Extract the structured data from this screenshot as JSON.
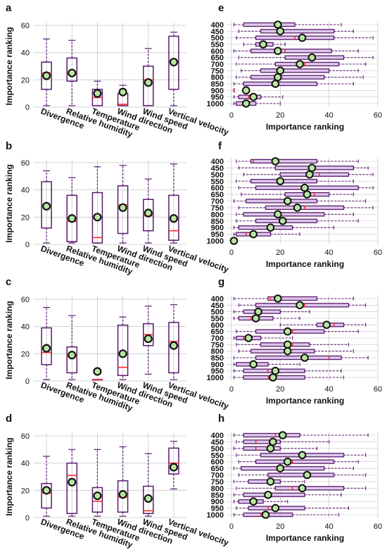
{
  "figure": {
    "colors": {
      "box": "#5b1a6e",
      "whisker": "#5b1a6e",
      "median": "#ff2a2a",
      "mean_fill": "#b8e6a0",
      "mean_edge": "#111111",
      "hbox_fill": "#dcc8ea",
      "grid": "#c8c8c8"
    }
  },
  "chart_data": [
    {
      "panel": "a",
      "type": "box",
      "orientation": "vertical",
      "ylabel": "Importance ranking",
      "ylim": [
        0,
        60
      ],
      "yticks": [
        0,
        20,
        40,
        60
      ],
      "categories": [
        "Divergence",
        "Relative humidity",
        "Temperature",
        "Wind direction",
        "Wind speed",
        "Vertical velocity"
      ],
      "boxes": [
        {
          "whislo": 1,
          "q1": 13,
          "med": 25,
          "q3": 33,
          "whishi": 50,
          "mean": 23
        },
        {
          "whislo": 1,
          "q1": 19,
          "med": 24,
          "q3": 36,
          "whishi": 49,
          "mean": 25
        },
        {
          "whislo": 1,
          "q1": 1,
          "med": 7,
          "q3": 13,
          "whishi": 19,
          "mean": 10
        },
        {
          "whislo": 1,
          "q1": 1,
          "med": 2,
          "q3": 10,
          "whishi": 16,
          "mean": 11
        },
        {
          "whislo": 1,
          "q1": 1,
          "med": 20,
          "q3": 30,
          "whishi": 43,
          "mean": 18
        },
        {
          "whislo": 1,
          "q1": 13,
          "med": 34,
          "q3": 52,
          "whishi": 55,
          "mean": 33
        }
      ]
    },
    {
      "panel": "e",
      "type": "box",
      "orientation": "horizontal",
      "xlabel": "Importance ranking",
      "xlim": [
        -2,
        60
      ],
      "xticks": [
        0,
        20,
        40,
        60
      ],
      "categories": [
        "400",
        "450",
        "500",
        "550",
        "600",
        "650",
        "700",
        "750",
        "800",
        "850",
        "900",
        "950",
        "1000"
      ],
      "boxes": [
        {
          "whislo": 1,
          "q1": 5,
          "med": 20,
          "q3": 26,
          "whishi": 45,
          "mean": 19
        },
        {
          "whislo": 3,
          "q1": 12,
          "med": 20,
          "q3": 42,
          "whishi": 50,
          "mean": 20
        },
        {
          "whislo": 2,
          "q1": 10,
          "med": 26,
          "q3": 42,
          "whishi": 58,
          "mean": 29
        },
        {
          "whislo": 5,
          "q1": 10,
          "med": 13,
          "q3": 17,
          "whishi": 22,
          "mean": 13
        },
        {
          "whislo": 1,
          "q1": 8,
          "med": 22,
          "q3": 41,
          "whishi": 52,
          "mean": 19
        },
        {
          "whislo": 3,
          "q1": 22,
          "med": 34,
          "q3": 46,
          "whishi": 58,
          "mean": 33
        },
        {
          "whislo": 2,
          "q1": 18,
          "med": 30,
          "q3": 44,
          "whishi": 55,
          "mean": 28
        },
        {
          "whislo": 4,
          "q1": 12,
          "med": 20,
          "q3": 40,
          "whishi": 52,
          "mean": 20
        },
        {
          "whislo": 2,
          "q1": 8,
          "med": 19,
          "q3": 38,
          "whishi": 54,
          "mean": 19
        },
        {
          "whislo": 1,
          "q1": 5,
          "med": 18,
          "q3": 35,
          "whishi": 50,
          "mean": 18
        },
        {
          "whislo": 1,
          "q1": 1,
          "med": 1,
          "q3": 1,
          "whishi": 1,
          "mean": 6
        },
        {
          "whislo": 1,
          "q1": 3,
          "med": 7,
          "q3": 12,
          "whishi": 21,
          "mean": 9
        },
        {
          "whislo": 1,
          "q1": 2,
          "med": 5,
          "q3": 10,
          "whishi": 20,
          "mean": 6
        }
      ]
    },
    {
      "panel": "b",
      "type": "box",
      "orientation": "vertical",
      "ylabel": "Importance ranking",
      "ylim": [
        0,
        60
      ],
      "yticks": [
        0,
        20,
        40,
        60
      ],
      "categories": [
        "Divergence",
        "Relative humidity",
        "Temperature",
        "Wind direction",
        "Wind speed",
        "Vertical velocity"
      ],
      "boxes": [
        {
          "whislo": 1,
          "q1": 12,
          "med": 29,
          "q3": 46,
          "whishi": 54,
          "mean": 28
        },
        {
          "whislo": 1,
          "q1": 2,
          "med": 17,
          "q3": 36,
          "whishi": 49,
          "mean": 19
        },
        {
          "whislo": 1,
          "q1": 1,
          "med": 5,
          "q3": 38,
          "whishi": 57,
          "mean": 20
        },
        {
          "whislo": 1,
          "q1": 8,
          "med": 29,
          "q3": 43,
          "whishi": 58,
          "mean": 27
        },
        {
          "whislo": 1,
          "q1": 10,
          "med": 21,
          "q3": 33,
          "whishi": 48,
          "mean": 23
        },
        {
          "whislo": 1,
          "q1": 3,
          "med": 10,
          "q3": 36,
          "whishi": 59,
          "mean": 19
        }
      ]
    },
    {
      "panel": "f",
      "type": "box",
      "orientation": "horizontal",
      "xlabel": "Importance ranking",
      "xlim": [
        -2,
        60
      ],
      "xticks": [
        0,
        20,
        40,
        60
      ],
      "categories": [
        "400",
        "450",
        "500",
        "550",
        "600",
        "650",
        "700",
        "750",
        "800",
        "850",
        "900",
        "950",
        "1000"
      ],
      "boxes": [
        {
          "whislo": 2,
          "q1": 8,
          "med": 9,
          "q3": 35,
          "whishi": 52,
          "mean": 18
        },
        {
          "whislo": 3,
          "q1": 18,
          "med": 34,
          "q3": 50,
          "whishi": 56,
          "mean": 33
        },
        {
          "whislo": 5,
          "q1": 20,
          "med": 36,
          "q3": 48,
          "whishi": 58,
          "mean": 32
        },
        {
          "whislo": 2,
          "q1": 8,
          "med": 20,
          "q3": 35,
          "whishi": 50,
          "mean": 20
        },
        {
          "whislo": 3,
          "q1": 10,
          "med": 30,
          "q3": 52,
          "whishi": 58,
          "mean": 30
        },
        {
          "whislo": 4,
          "q1": 22,
          "med": 34,
          "q3": 40,
          "whishi": 50,
          "mean": 31
        },
        {
          "whislo": 1,
          "q1": 6,
          "med": 22,
          "q3": 35,
          "whishi": 55,
          "mean": 23
        },
        {
          "whislo": 3,
          "q1": 14,
          "med": 30,
          "q3": 46,
          "whishi": 58,
          "mean": 27
        },
        {
          "whislo": 2,
          "q1": 5,
          "med": 20,
          "q3": 38,
          "whishi": 50,
          "mean": 19
        },
        {
          "whislo": 2,
          "q1": 10,
          "med": 20,
          "q3": 35,
          "whishi": 52,
          "mean": 21
        },
        {
          "whislo": 1,
          "q1": 3,
          "med": 15,
          "q3": 25,
          "whishi": 42,
          "mean": 16
        },
        {
          "whislo": 1,
          "q1": 2,
          "med": 6,
          "q3": 16,
          "whishi": 28,
          "mean": 9
        },
        {
          "whislo": 1,
          "q1": 1,
          "med": 1,
          "q3": 1,
          "whishi": 1,
          "mean": 1
        }
      ]
    },
    {
      "panel": "c",
      "type": "box",
      "orientation": "vertical",
      "ylabel": "Importance ranking",
      "ylim": [
        0,
        60
      ],
      "yticks": [
        0,
        20,
        40,
        60
      ],
      "categories": [
        "Divergence",
        "Relative humidity",
        "Temperature",
        "Wind direction",
        "Wind speed",
        "Vertical velocity"
      ],
      "boxes": [
        {
          "whislo": 1,
          "q1": 12,
          "med": 21,
          "q3": 39,
          "whishi": 54,
          "mean": 24
        },
        {
          "whislo": 1,
          "q1": 6,
          "med": 18,
          "q3": 25,
          "whishi": 48,
          "mean": 19
        },
        {
          "whislo": 1,
          "q1": 1,
          "med": 1,
          "q3": 1,
          "whishi": 1,
          "mean": 7
        },
        {
          "whislo": 1,
          "q1": 4,
          "med": 10,
          "q3": 41,
          "whishi": 47,
          "mean": 20
        },
        {
          "whislo": 5,
          "q1": 26,
          "med": 34,
          "q3": 42,
          "whishi": 55,
          "mean": 31
        },
        {
          "whislo": 1,
          "q1": 6,
          "med": 29,
          "q3": 43,
          "whishi": 56,
          "mean": 26
        }
      ]
    },
    {
      "panel": "g",
      "type": "box",
      "orientation": "horizontal",
      "xlabel": "Importance ranking",
      "xlim": [
        -2,
        60
      ],
      "xticks": [
        0,
        20,
        40,
        60
      ],
      "categories": [
        "400",
        "450",
        "500",
        "550",
        "600",
        "650",
        "700",
        "750",
        "800",
        "850",
        "900",
        "950",
        "1000"
      ],
      "boxes": [
        {
          "whislo": 1,
          "q1": 15,
          "med": 16,
          "q3": 35,
          "whishi": 50,
          "mean": 19
        },
        {
          "whislo": 3,
          "q1": 10,
          "med": 30,
          "q3": 48,
          "whishi": 55,
          "mean": 28
        },
        {
          "whislo": 1,
          "q1": 5,
          "med": 10,
          "q3": 20,
          "whishi": 32,
          "mean": 11
        },
        {
          "whislo": 1,
          "q1": 3,
          "med": 8,
          "q3": 17,
          "whishi": 28,
          "mean": 10
        },
        {
          "whislo": 20,
          "q1": 35,
          "med": 42,
          "q3": 46,
          "whishi": 55,
          "mean": 39
        },
        {
          "whislo": 2,
          "q1": 10,
          "med": 25,
          "q3": 38,
          "whishi": 52,
          "mean": 23
        },
        {
          "whislo": 1,
          "q1": 2,
          "med": 5,
          "q3": 12,
          "whishi": 25,
          "mean": 7
        },
        {
          "whislo": 2,
          "q1": 12,
          "med": 25,
          "q3": 32,
          "whishi": 48,
          "mean": 23
        },
        {
          "whislo": 3,
          "q1": 8,
          "med": 22,
          "q3": 34,
          "whishi": 50,
          "mean": 23
        },
        {
          "whislo": 1,
          "q1": 10,
          "med": 40,
          "q3": 45,
          "whishi": 56,
          "mean": 30
        },
        {
          "whislo": 1,
          "q1": 2,
          "med": 8,
          "q3": 15,
          "whishi": 28,
          "mean": 9
        },
        {
          "whislo": 1,
          "q1": 5,
          "med": 15,
          "q3": 30,
          "whishi": 45,
          "mean": 18
        },
        {
          "whislo": 1,
          "q1": 5,
          "med": 15,
          "q3": 30,
          "whishi": 46,
          "mean": 17
        }
      ]
    },
    {
      "panel": "d",
      "type": "box",
      "orientation": "vertical",
      "ylabel": "Importance ranking",
      "ylim": [
        0,
        60
      ],
      "yticks": [
        0,
        20,
        40,
        60
      ],
      "categories": [
        "Divergence",
        "Relative humidity",
        "Temperature",
        "Wind direction",
        "Wind speed",
        "Vertical velocity"
      ],
      "boxes": [
        {
          "whislo": 1,
          "q1": 7,
          "med": 18,
          "q3": 25,
          "whishi": 45,
          "mean": 20
        },
        {
          "whislo": 1,
          "q1": 3,
          "med": 31,
          "q3": 40,
          "whishi": 50,
          "mean": 26
        },
        {
          "whislo": 1,
          "q1": 4,
          "med": 12,
          "q3": 22,
          "whishi": 50,
          "mean": 16
        },
        {
          "whislo": 1,
          "q1": 4,
          "med": 15,
          "q3": 27,
          "whishi": 52,
          "mean": 17
        },
        {
          "whislo": 1,
          "q1": 3,
          "med": 5,
          "q3": 23,
          "whishi": 47,
          "mean": 14
        },
        {
          "whislo": 21,
          "q1": 32,
          "med": 40,
          "q3": 51,
          "whishi": 56,
          "mean": 37
        }
      ]
    },
    {
      "panel": "h",
      "type": "box",
      "orientation": "horizontal",
      "xlabel": "Importance ranking",
      "xlim": [
        -2,
        60
      ],
      "xticks": [
        0,
        20,
        40,
        60
      ],
      "categories": [
        "400",
        "450",
        "500",
        "550",
        "600",
        "650",
        "700",
        "750",
        "800",
        "850",
        "900",
        "950",
        "1000"
      ],
      "boxes": [
        {
          "whislo": 1,
          "q1": 5,
          "med": 18,
          "q3": 28,
          "whishi": 56,
          "mean": 21
        },
        {
          "whislo": 2,
          "q1": 5,
          "med": 10,
          "q3": 20,
          "whishi": 40,
          "mean": 17
        },
        {
          "whislo": 1,
          "q1": 5,
          "med": 10,
          "q3": 20,
          "whishi": 35,
          "mean": 16
        },
        {
          "whislo": 2,
          "q1": 12,
          "med": 30,
          "q3": 46,
          "whishi": 55,
          "mean": 29
        },
        {
          "whislo": 3,
          "q1": 10,
          "med": 25,
          "q3": 42,
          "whishi": 52,
          "mean": 23
        },
        {
          "whislo": 1,
          "q1": 4,
          "med": 20,
          "q3": 38,
          "whishi": 50,
          "mean": 20
        },
        {
          "whislo": 3,
          "q1": 15,
          "med": 30,
          "q3": 42,
          "whishi": 55,
          "mean": 31
        },
        {
          "whislo": 1,
          "q1": 7,
          "med": 15,
          "q3": 20,
          "whishi": 30,
          "mean": 16
        },
        {
          "whislo": 2,
          "q1": 18,
          "med": 25,
          "q3": 46,
          "whishi": 55,
          "mean": 29
        },
        {
          "whislo": 1,
          "q1": 5,
          "med": 15,
          "q3": 30,
          "whishi": 45,
          "mean": 15
        },
        {
          "whislo": 1,
          "q1": 3,
          "med": 10,
          "q3": 13,
          "whishi": 23,
          "mean": 9
        },
        {
          "whislo": 2,
          "q1": 7,
          "med": 15,
          "q3": 30,
          "whishi": 48,
          "mean": 18
        },
        {
          "whislo": 1,
          "q1": 5,
          "med": 12,
          "q3": 25,
          "whishi": 44,
          "mean": 14
        }
      ]
    }
  ]
}
